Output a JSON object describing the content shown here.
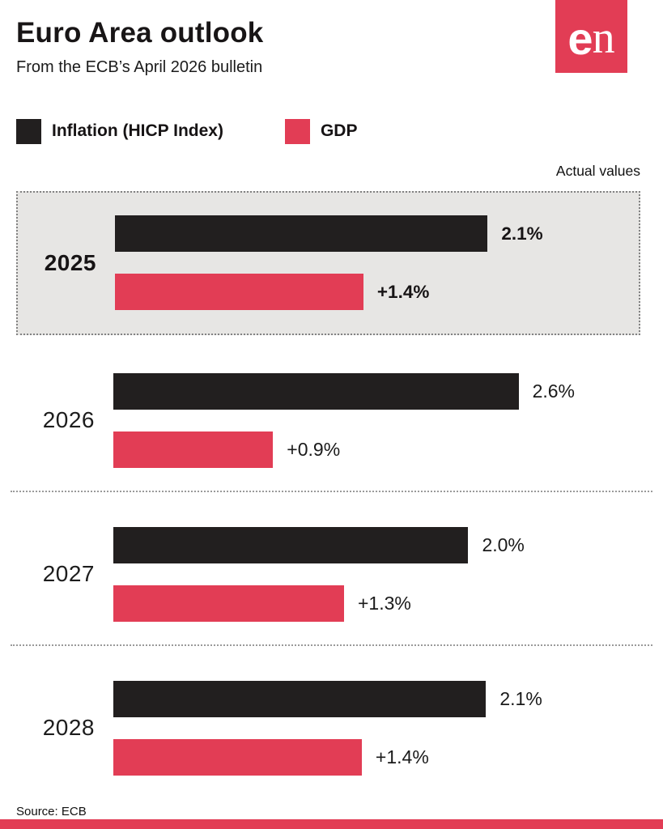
{
  "header": {
    "title": "Euro Area outlook",
    "subtitle": "From the ECB’s April 2026 bulletin",
    "logo_bold": "e",
    "logo_serif": "n"
  },
  "legend": {
    "items": [
      {
        "label": "Inflation (HICP Index)",
        "color": "#221f1f"
      },
      {
        "label": "GDP",
        "color": "#e23d55"
      }
    ]
  },
  "annotations": {
    "actual_values_note": "Actual values"
  },
  "chart_data": {
    "type": "bar",
    "orientation": "horizontal",
    "title": "Euro Area outlook",
    "subtitle": "From the ECB’s April 2026 bulletin",
    "categories": [
      "2025",
      "2026",
      "2027",
      "2028"
    ],
    "series": [
      {
        "name": "Inflation (HICP Index)",
        "color": "#221f1f",
        "values": [
          2.1,
          2.6,
          2.0,
          2.1
        ],
        "labels": [
          "2.1%",
          "2.6%",
          "2.0%",
          "2.1%"
        ]
      },
      {
        "name": "GDP",
        "color": "#e23d55",
        "values": [
          1.4,
          0.9,
          1.3,
          1.4
        ],
        "labels": [
          "+1.4%",
          "+0.9%",
          "+1.3%",
          "+1.4%"
        ]
      }
    ],
    "highlighted_category": "2025",
    "highlight_note": "Actual values",
    "axis_max": 2.6,
    "legend_position": "top",
    "grid": false
  },
  "footer": {
    "source": "Source: ECB"
  },
  "colors": {
    "accent_red": "#e23d55",
    "bar_black": "#221f1f",
    "highlight_bg": "#e7e6e4"
  }
}
